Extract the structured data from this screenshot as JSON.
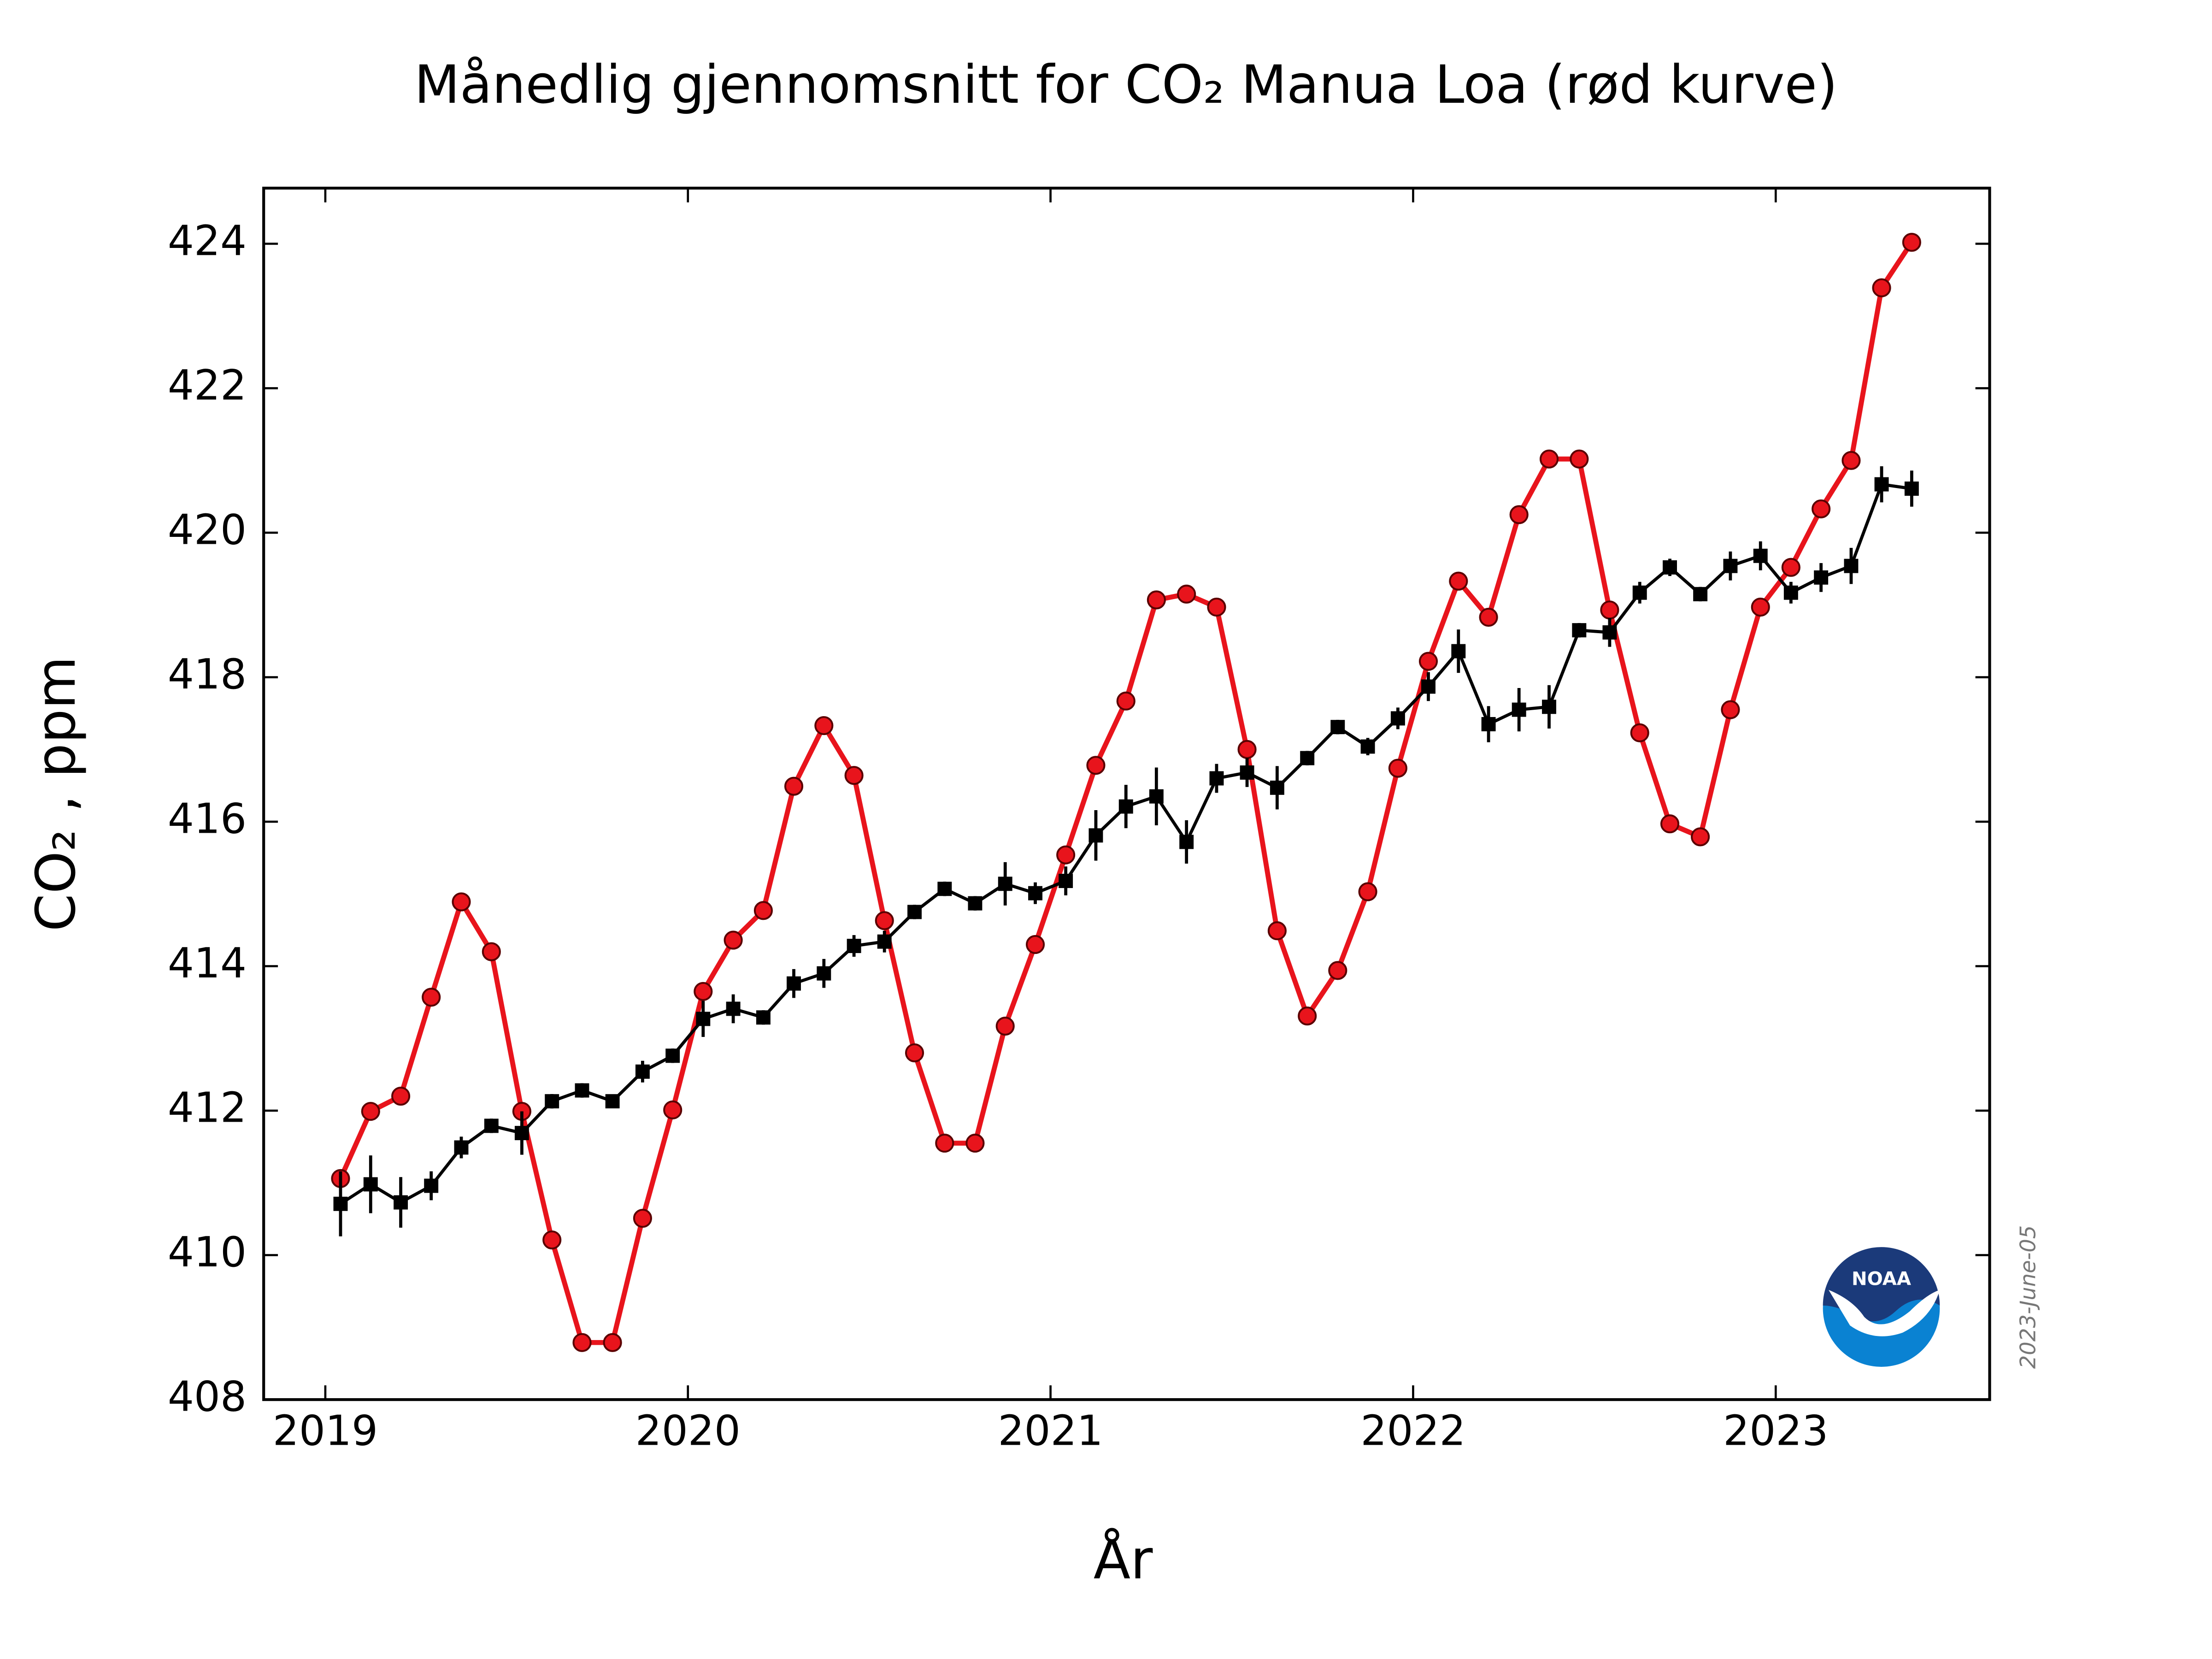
{
  "chart_data": {
    "type": "line",
    "title": "Månedlig gjennomsnitt for CO₂ Manua Loa (rød kurve)",
    "x_label": "År",
    "y_label": "CO₂ , ppm",
    "date_stamp": "2023-June-05",
    "logo_text": "NOAA",
    "xlim": [
      2018.83,
      2023.59
    ],
    "xticks": [
      2019,
      2020,
      2021,
      2022,
      2023
    ],
    "ylim": [
      408,
      424.77
    ],
    "yticks": [
      408,
      410,
      412,
      414,
      416,
      418,
      420,
      422,
      424
    ],
    "x": [
      2019.042,
      2019.125,
      2019.208,
      2019.292,
      2019.375,
      2019.458,
      2019.542,
      2019.625,
      2019.708,
      2019.792,
      2019.875,
      2019.958,
      2020.042,
      2020.125,
      2020.208,
      2020.292,
      2020.375,
      2020.458,
      2020.542,
      2020.625,
      2020.708,
      2020.792,
      2020.875,
      2020.958,
      2021.042,
      2021.125,
      2021.208,
      2021.292,
      2021.375,
      2021.458,
      2021.542,
      2021.625,
      2021.708,
      2021.792,
      2021.875,
      2021.958,
      2022.042,
      2022.125,
      2022.208,
      2022.292,
      2022.375,
      2022.458,
      2022.542,
      2022.625,
      2022.708,
      2022.792,
      2022.875,
      2022.958,
      2023.042,
      2023.125,
      2023.208,
      2023.292,
      2023.375
    ],
    "series": [
      {
        "color": "#e8141c",
        "marker": "circle",
        "values": [
          411.06,
          411.99,
          412.2,
          413.57,
          414.89,
          414.2,
          411.99,
          410.21,
          408.79,
          408.79,
          410.51,
          412.01,
          413.65,
          414.36,
          414.77,
          416.49,
          417.33,
          416.64,
          414.63,
          412.8,
          411.55,
          411.55,
          413.17,
          414.3,
          415.54,
          416.78,
          417.67,
          419.07,
          419.15,
          418.97,
          417.0,
          414.49,
          413.31,
          413.94,
          415.03,
          416.74,
          418.22,
          419.33,
          418.83,
          420.25,
          421.02,
          421.02,
          418.93,
          417.23,
          415.97,
          415.79,
          417.55,
          418.97,
          419.52,
          420.33,
          421.0,
          423.39,
          424.02
        ]
      },
      {
        "color": "#000000",
        "marker": "square",
        "values": [
          410.71,
          410.98,
          410.73,
          410.96,
          411.49,
          411.79,
          411.69,
          412.13,
          412.28,
          412.13,
          412.54,
          412.76,
          413.27,
          413.41,
          413.29,
          413.76,
          413.9,
          414.28,
          414.34,
          414.75,
          415.07,
          414.87,
          415.14,
          415.01,
          415.18,
          415.81,
          416.21,
          416.35,
          415.72,
          416.6,
          416.68,
          416.47,
          416.88,
          417.31,
          417.04,
          417.43,
          417.87,
          418.36,
          417.35,
          417.55,
          417.59,
          418.65,
          418.62,
          419.17,
          419.52,
          419.15,
          419.54,
          419.68,
          419.17,
          419.38,
          419.54,
          420.67,
          420.61
        ],
        "errors": [
          0.45,
          0.4,
          0.35,
          0.2,
          0.15,
          0.1,
          0.3,
          0.1,
          0.1,
          0.08,
          0.15,
          0.1,
          0.25,
          0.2,
          0.1,
          0.2,
          0.2,
          0.15,
          0.15,
          0.1,
          0.1,
          0.1,
          0.3,
          0.15,
          0.2,
          0.35,
          0.3,
          0.4,
          0.3,
          0.2,
          0.2,
          0.3,
          0.1,
          0.1,
          0.12,
          0.15,
          0.2,
          0.3,
          0.25,
          0.3,
          0.3,
          0.1,
          0.2,
          0.15,
          0.12,
          0.1,
          0.2,
          0.2,
          0.15,
          0.2,
          0.25,
          0.25,
          0.25
        ]
      }
    ]
  }
}
